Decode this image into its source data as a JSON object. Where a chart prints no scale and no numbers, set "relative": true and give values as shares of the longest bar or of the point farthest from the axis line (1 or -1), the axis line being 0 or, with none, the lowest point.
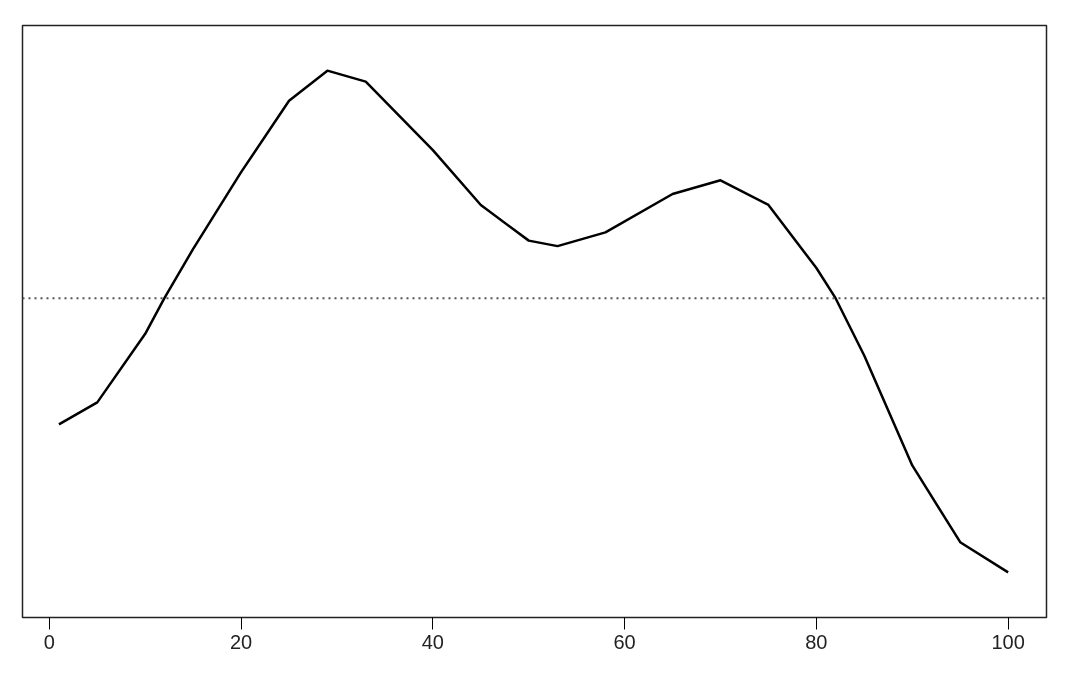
{
  "chart_data": {
    "type": "line",
    "relative": true,
    "x": [
      1,
      5,
      10,
      12,
      15,
      20,
      25,
      29,
      33,
      40,
      45,
      50,
      53,
      58,
      65,
      70,
      75,
      80,
      82,
      85,
      90,
      95,
      100
    ],
    "series": [
      {
        "color": "#000000",
        "values": [
          -0.46,
          -0.38,
          -0.13,
          0,
          0.18,
          0.46,
          0.72,
          0.83,
          0.79,
          0.54,
          0.34,
          0.21,
          0.19,
          0.24,
          0.38,
          0.43,
          0.34,
          0.11,
          0,
          -0.21,
          -0.61,
          -0.89,
          -1
        ]
      }
    ],
    "xlim": [
      -2.8,
      104
    ],
    "xticks": [
      0,
      20,
      40,
      60,
      80,
      100
    ],
    "ref_lines": [
      {
        "axis": "y",
        "value": 0,
        "color": "#555555",
        "line_style": "dotted"
      }
    ],
    "grid": false,
    "marker": "none",
    "line_style": "solid"
  }
}
